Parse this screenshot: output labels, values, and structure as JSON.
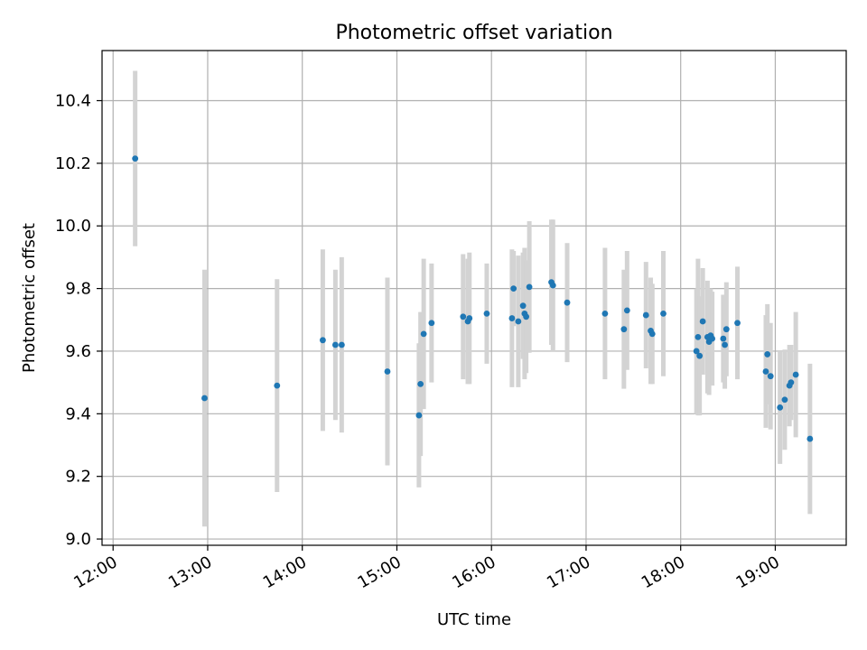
{
  "chart_data": {
    "type": "scatter",
    "title": "Photometric offset variation",
    "xlabel": "UTC time",
    "ylabel": "Photometric offset",
    "x_is_time": true,
    "xlim": [
      "11:53",
      "19:45"
    ],
    "ylim": [
      8.98,
      10.56
    ],
    "x_ticks": [
      "12:00",
      "13:00",
      "14:00",
      "15:00",
      "16:00",
      "17:00",
      "18:00",
      "19:00"
    ],
    "y_ticks": [
      "9.0",
      "9.2",
      "9.4",
      "9.6",
      "9.8",
      "10.0",
      "10.2",
      "10.4"
    ],
    "grid": true,
    "point_color": "#1f77b4",
    "errorbar_color": "#d3d3d3",
    "series": [
      {
        "x": [
          "12:14",
          "12:58",
          "13:44",
          "14:13",
          "14:21",
          "14:25",
          "14:54",
          "15:14",
          "15:15",
          "15:17",
          "15:22",
          "15:42",
          "15:45",
          "15:46",
          "15:57",
          "16:13",
          "16:14",
          "16:17",
          "16:20",
          "16:21",
          "16:22",
          "16:24",
          "16:38",
          "16:39",
          "16:48",
          "17:12",
          "17:24",
          "17:26",
          "17:38",
          "17:41",
          "17:42",
          "17:49",
          "18:10",
          "18:11",
          "18:12",
          "18:14",
          "18:17",
          "18:18",
          "18:19",
          "18:20",
          "18:27",
          "18:28",
          "18:29",
          "18:36",
          "18:54",
          "18:55",
          "18:57",
          "19:03",
          "19:06",
          "19:09",
          "19:10",
          "19:13",
          "19:22"
        ],
        "y": [
          10.215,
          9.45,
          9.49,
          9.635,
          9.62,
          9.62,
          9.535,
          9.395,
          9.495,
          9.655,
          9.69,
          9.71,
          9.695,
          9.705,
          9.72,
          9.705,
          9.8,
          9.695,
          9.745,
          9.72,
          9.71,
          9.805,
          9.82,
          9.81,
          9.755,
          9.72,
          9.67,
          9.73,
          9.715,
          9.665,
          9.655,
          9.72,
          9.6,
          9.645,
          9.585,
          9.695,
          9.645,
          9.63,
          9.65,
          9.64,
          9.64,
          9.62,
          9.67,
          9.69,
          9.535,
          9.59,
          9.52,
          9.42,
          9.445,
          9.49,
          9.5,
          9.525,
          9.32
        ],
        "err": [
          0.28,
          0.41,
          0.34,
          0.29,
          0.24,
          0.28,
          0.3,
          0.23,
          0.23,
          0.24,
          0.19,
          0.2,
          0.2,
          0.21,
          0.16,
          0.22,
          0.12,
          0.21,
          0.17,
          0.21,
          0.18,
          0.21,
          0.2,
          0.21,
          0.19,
          0.21,
          0.19,
          0.19,
          0.17,
          0.17,
          0.16,
          0.2,
          0.2,
          0.25,
          0.19,
          0.17,
          0.18,
          0.17,
          0.15,
          0.15,
          0.14,
          0.14,
          0.15,
          0.18,
          0.18,
          0.16,
          0.17,
          0.18,
          0.16,
          0.13,
          0.12,
          0.2,
          0.24
        ]
      }
    ]
  }
}
